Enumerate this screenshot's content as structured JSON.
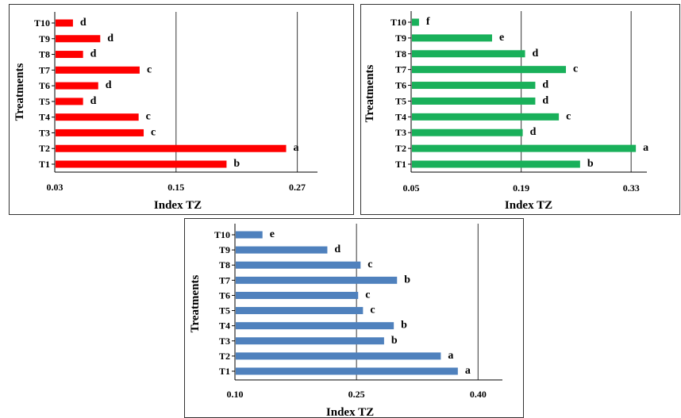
{
  "chart_data": [
    {
      "type": "bar",
      "orientation": "horizontal",
      "categories": [
        "T1",
        "T2",
        "T3",
        "T4",
        "T5",
        "T6",
        "T7",
        "T8",
        "T9",
        "T10"
      ],
      "values": [
        0.2,
        0.259,
        0.118,
        0.113,
        0.058,
        0.073,
        0.114,
        0.058,
        0.075,
        0.048
      ],
      "letters": [
        "b",
        "a",
        "c",
        "c",
        "d",
        "d",
        "c",
        "d",
        "d",
        "d"
      ],
      "xlabel": "Index TZ",
      "ylabel": "Treatments",
      "xlim": [
        0.03,
        0.29
      ],
      "xticks": [
        "0.03",
        "0.15",
        "0.27"
      ],
      "tick_values": [
        0.03,
        0.15,
        0.27
      ],
      "grid": "vertical",
      "color": "#ff0000"
    },
    {
      "type": "bar",
      "orientation": "horizontal",
      "categories": [
        "T1",
        "T2",
        "T3",
        "T4",
        "T5",
        "T6",
        "T7",
        "T8",
        "T9",
        "T10"
      ],
      "values": [
        0.265,
        0.336,
        0.192,
        0.238,
        0.208,
        0.208,
        0.247,
        0.195,
        0.153,
        0.06
      ],
      "letters": [
        "b",
        "a",
        "d",
        "c",
        "d",
        "d",
        "c",
        "d",
        "e",
        "f"
      ],
      "xlabel": "Index TZ",
      "ylabel": "Treatments",
      "xlim": [
        0.05,
        0.35
      ],
      "xticks": [
        "0.05",
        "0.19",
        "0.33"
      ],
      "tick_values": [
        0.05,
        0.19,
        0.33
      ],
      "grid": "vertical",
      "color": "#19b05a"
    },
    {
      "type": "bar",
      "orientation": "horizontal",
      "categories": [
        "T1",
        "T2",
        "T3",
        "T4",
        "T5",
        "T6",
        "T7",
        "T8",
        "T9",
        "T10"
      ],
      "values": [
        0.375,
        0.354,
        0.284,
        0.296,
        0.258,
        0.252,
        0.3,
        0.255,
        0.214,
        0.134
      ],
      "letters": [
        "a",
        "a",
        "b",
        "b",
        "c",
        "c",
        "b",
        "c",
        "d",
        "e"
      ],
      "xlabel": "Index TZ",
      "ylabel": "Treatments",
      "xlim": [
        0.1,
        0.43
      ],
      "xticks": [
        "0.10",
        "0.25",
        "0.40"
      ],
      "tick_values": [
        0.1,
        0.25,
        0.4
      ],
      "grid": "vertical",
      "color": "#4f81bd"
    }
  ]
}
